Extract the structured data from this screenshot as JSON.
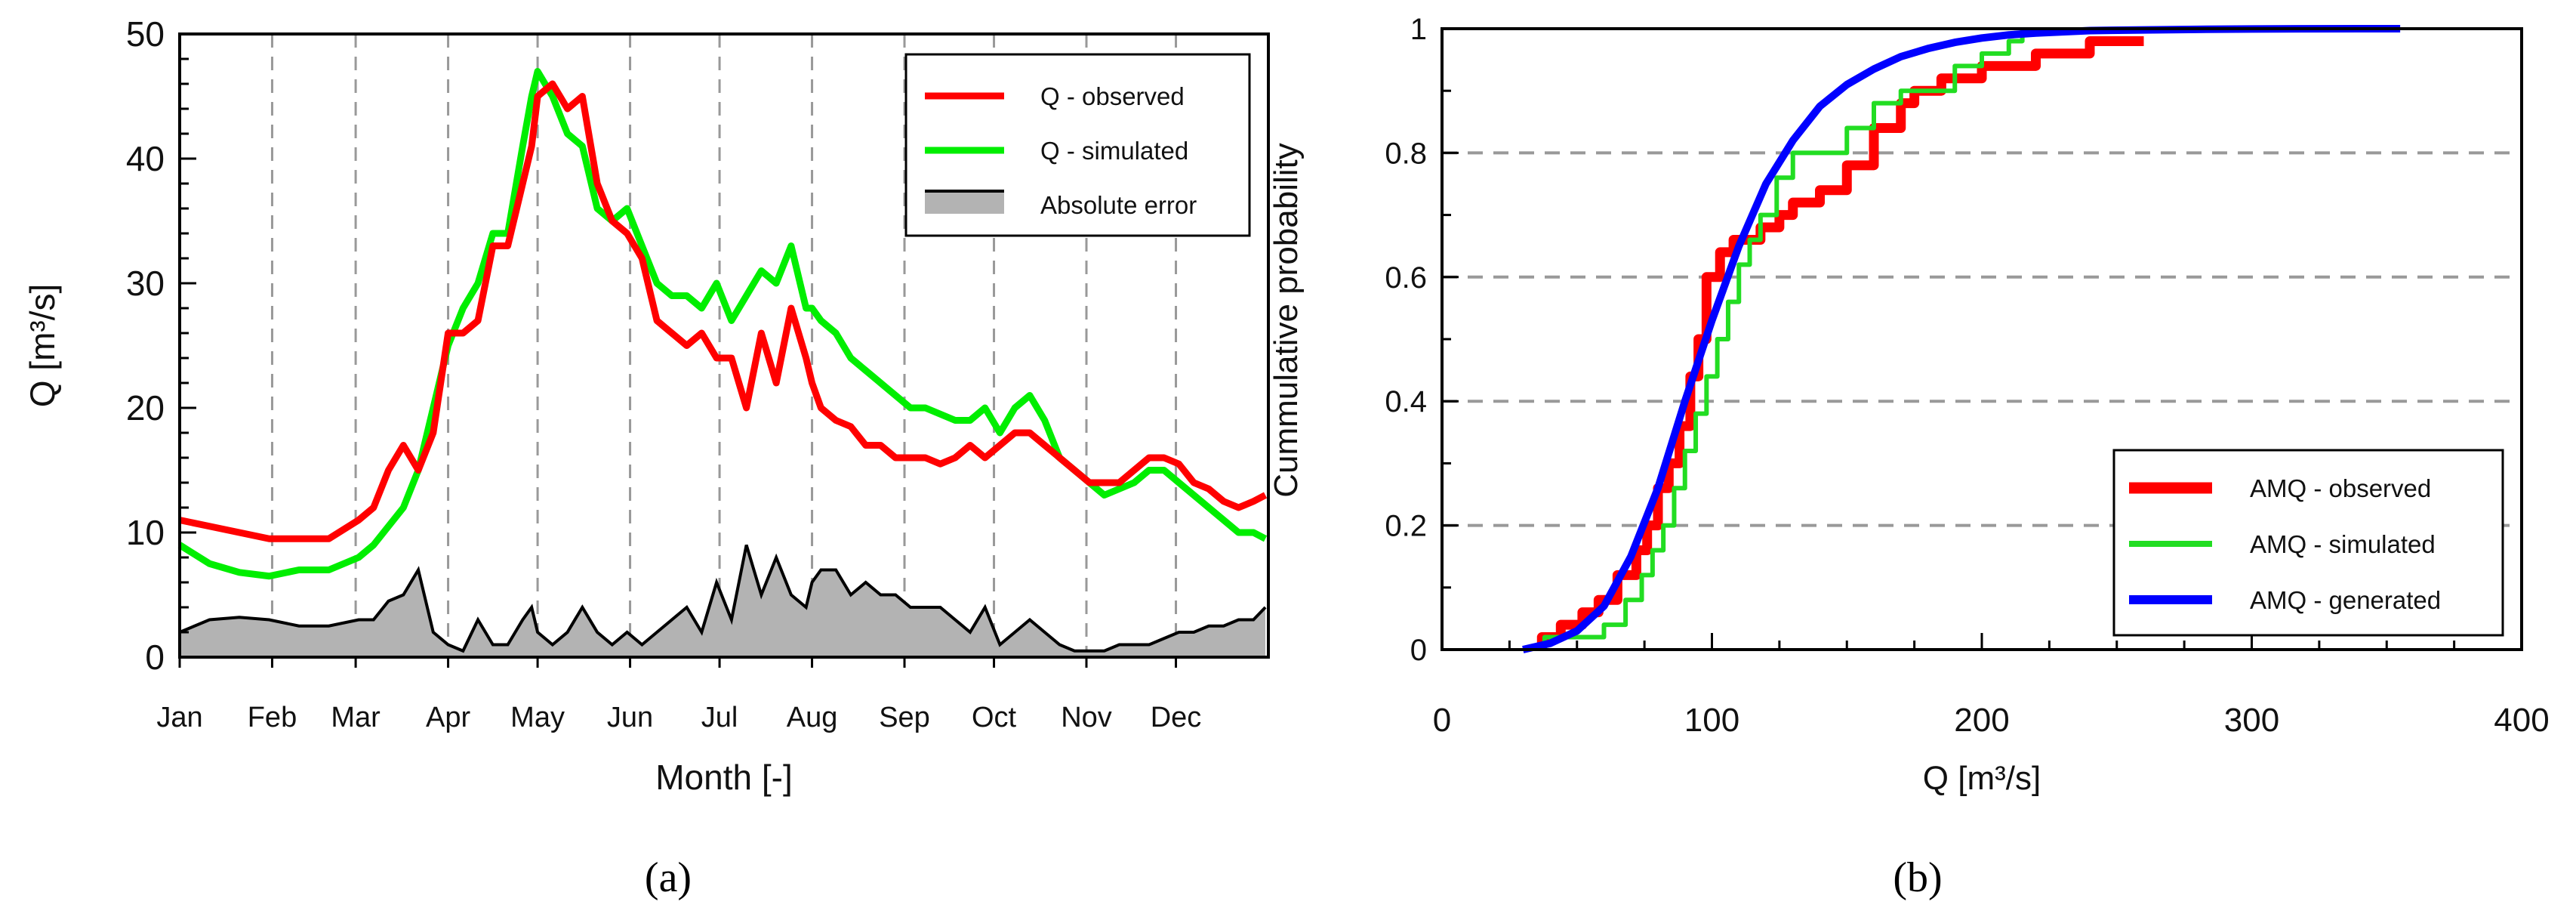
{
  "chart_data": [
    {
      "type": "line",
      "panel_label": "a",
      "xlabel": "Month [-]",
      "ylabel": "Q [m³/s]",
      "ylim": [
        0,
        50
      ],
      "yticks": [
        0,
        10,
        20,
        30,
        40,
        50
      ],
      "xlim": [
        0,
        365
      ],
      "months": [
        "Jan",
        "Feb",
        "Mar",
        "Apr",
        "May",
        "Jun",
        "Jul",
        "Aug",
        "Sep",
        "Oct",
        "Nov",
        "Dec"
      ],
      "month_start_day": [
        0,
        31,
        59,
        90,
        120,
        151,
        181,
        212,
        243,
        273,
        304,
        334
      ],
      "legend_position": "top-right",
      "series": [
        {
          "name": "Q - observed",
          "color": "#ff0000",
          "x": [
            0,
            10,
            20,
            30,
            40,
            50,
            60,
            65,
            70,
            75,
            80,
            85,
            90,
            95,
            100,
            105,
            110,
            115,
            118,
            120,
            125,
            130,
            135,
            140,
            145,
            150,
            155,
            160,
            165,
            170,
            175,
            180,
            185,
            190,
            195,
            200,
            205,
            210,
            212,
            215,
            220,
            225,
            230,
            235,
            240,
            245,
            250,
            255,
            260,
            265,
            270,
            275,
            280,
            285,
            290,
            295,
            300,
            305,
            310,
            315,
            320,
            325,
            330,
            335,
            340,
            345,
            350,
            355,
            360,
            364
          ],
          "values": [
            11,
            10.5,
            10,
            9.5,
            9.5,
            9.5,
            11,
            12,
            15,
            17,
            15,
            18,
            26,
            26,
            27,
            33,
            33,
            38,
            41,
            45,
            46,
            44,
            45,
            38,
            35,
            34,
            32,
            27,
            26,
            25,
            26,
            24,
            24,
            20,
            26,
            22,
            28,
            24,
            22,
            20,
            19,
            18.5,
            17,
            17,
            16,
            16,
            16,
            15.5,
            16,
            17,
            16,
            17,
            18,
            18,
            17,
            16,
            15,
            14,
            14,
            14,
            15,
            16,
            16,
            15.5,
            14,
            13.5,
            12.5,
            12,
            12.5,
            13
          ]
        },
        {
          "name": "Q - simulated",
          "color": "#00ee00",
          "x": [
            0,
            10,
            20,
            30,
            40,
            50,
            60,
            65,
            70,
            75,
            80,
            85,
            90,
            95,
            100,
            105,
            110,
            115,
            118,
            120,
            125,
            130,
            135,
            140,
            145,
            150,
            155,
            160,
            165,
            170,
            175,
            180,
            185,
            190,
            195,
            200,
            205,
            210,
            212,
            215,
            220,
            225,
            230,
            235,
            240,
            245,
            250,
            255,
            260,
            265,
            270,
            275,
            280,
            285,
            290,
            295,
            300,
            305,
            310,
            315,
            320,
            325,
            330,
            335,
            340,
            345,
            350,
            355,
            360,
            364
          ],
          "values": [
            9,
            7.5,
            6.8,
            6.5,
            7,
            7,
            8,
            9,
            10.5,
            12,
            15,
            20,
            25,
            28,
            30,
            34,
            34,
            41,
            45,
            47,
            45,
            42,
            41,
            36,
            35,
            36,
            33,
            30,
            29,
            29,
            28,
            30,
            27,
            29,
            31,
            30,
            33,
            28,
            28,
            27,
            26,
            24,
            23,
            22,
            21,
            20,
            20,
            19.5,
            19,
            19,
            20,
            18,
            20,
            21,
            19,
            16,
            15,
            14,
            13,
            13.5,
            14,
            15,
            15,
            14,
            13,
            12,
            11,
            10,
            10,
            9.5
          ]
        },
        {
          "name": "Absolute error",
          "color": "#000000",
          "fill": "#b3b3b3",
          "x": [
            0,
            10,
            20,
            30,
            40,
            50,
            60,
            65,
            70,
            75,
            80,
            85,
            90,
            95,
            100,
            105,
            110,
            115,
            118,
            120,
            125,
            130,
            135,
            140,
            145,
            150,
            155,
            160,
            165,
            170,
            175,
            180,
            185,
            190,
            195,
            200,
            205,
            210,
            212,
            215,
            220,
            225,
            230,
            235,
            240,
            245,
            250,
            255,
            260,
            265,
            270,
            275,
            280,
            285,
            290,
            295,
            300,
            305,
            310,
            315,
            320,
            325,
            330,
            335,
            340,
            345,
            350,
            355,
            360,
            364
          ],
          "values": [
            2,
            3,
            3.2,
            3,
            2.5,
            2.5,
            3,
            3,
            4.5,
            5,
            7,
            2,
            1,
            0.5,
            3,
            1,
            1,
            3,
            4,
            2,
            1,
            2,
            4,
            2,
            1,
            2,
            1,
            2,
            3,
            4,
            2,
            6,
            3,
            9,
            5,
            8,
            5,
            4,
            6,
            7,
            7,
            5,
            6,
            5,
            5,
            4,
            4,
            4,
            3,
            2,
            4,
            1,
            2,
            3,
            2,
            1,
            0.5,
            0.5,
            0.5,
            1,
            1,
            1,
            1.5,
            2,
            2,
            2.5,
            2.5,
            3,
            3,
            4
          ]
        }
      ]
    },
    {
      "type": "line",
      "panel_label": "b",
      "xlabel": "Q [m³/s]",
      "ylabel": "Cummulative probability",
      "xlim": [
        0,
        400
      ],
      "ylim": [
        0,
        1
      ],
      "xticks": [
        0,
        100,
        200,
        300,
        400
      ],
      "yticks": [
        0,
        0.2,
        0.4,
        0.6,
        0.8,
        1
      ],
      "ytick_labels": [
        "0",
        "0.2",
        "0.4",
        "0.6",
        "0.8",
        "1"
      ],
      "legend_position": "bottom-right",
      "series": [
        {
          "name": "AMQ - observed",
          "color": "#ff0000",
          "step": true,
          "x": [
            37,
            44,
            52,
            58,
            65,
            72,
            76,
            80,
            84,
            88,
            92,
            95,
            98,
            103,
            108,
            112,
            118,
            125,
            130,
            140,
            150,
            160,
            170,
            175,
            185,
            200,
            220,
            240,
            260
          ],
          "values": [
            0.02,
            0.04,
            0.06,
            0.08,
            0.12,
            0.16,
            0.2,
            0.26,
            0.3,
            0.36,
            0.44,
            0.5,
            0.6,
            0.64,
            0.66,
            0.66,
            0.68,
            0.7,
            0.72,
            0.74,
            0.78,
            0.84,
            0.88,
            0.9,
            0.92,
            0.94,
            0.96,
            0.98,
            0.98
          ]
        },
        {
          "name": "AMQ - simulated",
          "color": "#22dd22",
          "step": true,
          "x": [
            38,
            60,
            68,
            74,
            78,
            82,
            86,
            90,
            94,
            98,
            102,
            106,
            110,
            114,
            118,
            124,
            130,
            140,
            150,
            160,
            170,
            180,
            190,
            200,
            210,
            215
          ],
          "values": [
            0.02,
            0.04,
            0.08,
            0.12,
            0.16,
            0.2,
            0.26,
            0.32,
            0.38,
            0.44,
            0.5,
            0.56,
            0.62,
            0.66,
            0.7,
            0.76,
            0.8,
            0.8,
            0.84,
            0.88,
            0.9,
            0.9,
            0.94,
            0.96,
            0.98,
            1.0
          ]
        },
        {
          "name": "AMQ - generated",
          "color": "#0000ff",
          "x": [
            30,
            40,
            50,
            60,
            70,
            80,
            90,
            100,
            110,
            120,
            130,
            140,
            150,
            160,
            170,
            180,
            190,
            200,
            210,
            220,
            230,
            240,
            260,
            280,
            300,
            320,
            340,
            355
          ],
          "values": [
            0.0,
            0.01,
            0.03,
            0.07,
            0.15,
            0.26,
            0.4,
            0.53,
            0.65,
            0.75,
            0.82,
            0.875,
            0.91,
            0.935,
            0.955,
            0.968,
            0.978,
            0.985,
            0.99,
            0.993,
            0.995,
            0.997,
            0.998,
            0.999,
            0.9995,
            0.9998,
            1.0,
            1.0
          ]
        }
      ]
    }
  ]
}
